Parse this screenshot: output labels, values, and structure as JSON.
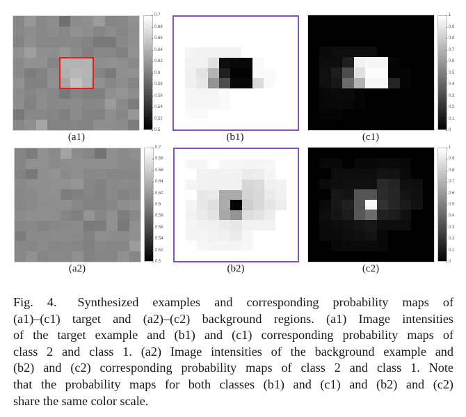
{
  "figure": {
    "number_label": "Fig. 4.",
    "caption_lines": [
      "Synthesized examples and corresponding probability maps of",
      "(a1)–(c1) target and (a2)–(c2) background regions. (a1) Image intensities",
      "of the target example and (b1) and (c1) corresponding probability maps of",
      "class 2 and class 1. (a2) Image intensities of the background example and",
      "(b2) and (c2) corresponding probability maps of class 2 and class 1. Note",
      "that the probability maps for both classes (b1) and (c1) and (b2) and (c2)",
      "share the same color scale."
    ],
    "panel_labels": {
      "a1": "(a1)",
      "b1": "(b1)",
      "c1": "(c1)",
      "a2": "(a2)",
      "b2": "(b2)",
      "c2": "(c2)"
    },
    "colors": {
      "target_box": "#e0201c",
      "prob_frame": "#8a4fbf"
    }
  },
  "chart_data": [
    {
      "id": "a1",
      "type": "heatmap",
      "title": "(a1)",
      "description": "Image intensities of the target example (11x11), red box marks target region rows 4-6, cols 4-6",
      "colormap": "gray",
      "clim": [
        0.5,
        0.7
      ],
      "colorbar_ticks": [
        "0.7",
        "0.68",
        "0.66",
        "0.64",
        "0.62",
        "0.6",
        "0.58",
        "0.56",
        "0.54",
        "0.52",
        "0.5"
      ],
      "highlight_box": {
        "row_start": 4,
        "row_end": 6,
        "col_start": 4,
        "col_end": 6
      },
      "values": [
        [
          0.605,
          0.618,
          0.606,
          0.611,
          0.588,
          0.61,
          0.612,
          0.622,
          0.604,
          0.606,
          0.613
        ],
        [
          0.607,
          0.611,
          0.607,
          0.61,
          0.606,
          0.614,
          0.611,
          0.604,
          0.61,
          0.605,
          0.611
        ],
        [
          0.603,
          0.612,
          0.607,
          0.606,
          0.606,
          0.606,
          0.603,
          0.594,
          0.594,
          0.607,
          0.612
        ],
        [
          0.614,
          0.624,
          0.612,
          0.611,
          0.618,
          0.609,
          0.601,
          0.606,
          0.606,
          0.602,
          0.614
        ],
        [
          0.608,
          0.614,
          0.614,
          0.604,
          0.64,
          0.64,
          0.64,
          0.611,
          0.614,
          0.612,
          0.608
        ],
        [
          0.608,
          0.598,
          0.603,
          0.612,
          0.638,
          0.644,
          0.642,
          0.604,
          0.596,
          0.612,
          0.614
        ],
        [
          0.614,
          0.601,
          0.602,
          0.613,
          0.632,
          0.652,
          0.64,
          0.614,
          0.606,
          0.611,
          0.604
        ],
        [
          0.61,
          0.604,
          0.61,
          0.606,
          0.594,
          0.604,
          0.6,
          0.6,
          0.612,
          0.616,
          0.611
        ],
        [
          0.611,
          0.602,
          0.611,
          0.607,
          0.608,
          0.61,
          0.605,
          0.607,
          0.622,
          0.608,
          0.598
        ],
        [
          0.594,
          0.606,
          0.607,
          0.604,
          0.6,
          0.61,
          0.603,
          0.602,
          0.612,
          0.605,
          0.618
        ],
        [
          0.606,
          0.612,
          0.63,
          0.603,
          0.603,
          0.604,
          0.603,
          0.611,
          0.611,
          0.609,
          0.598
        ]
      ]
    },
    {
      "id": "b1",
      "type": "heatmap",
      "title": "(b1)",
      "description": "Probability map of class 2 for target example",
      "colormap": "gray",
      "clim": [
        0,
        1
      ],
      "values": [
        [
          1,
          1,
          1,
          1,
          1,
          1,
          1,
          1,
          1,
          1,
          1
        ],
        [
          1,
          1,
          1,
          1,
          1,
          1,
          1,
          1,
          1,
          1,
          1
        ],
        [
          1,
          1,
          1,
          1,
          1,
          1,
          1,
          1,
          1,
          1,
          1
        ],
        [
          1,
          0.96,
          0.95,
          0.95,
          0.95,
          0.95,
          1,
          1,
          1,
          1,
          1
        ],
        [
          1,
          0.95,
          0.95,
          0.88,
          0.05,
          0.03,
          0.03,
          0.98,
          1,
          1,
          1
        ],
        [
          1,
          0.94,
          0.89,
          0.7,
          0.12,
          0.01,
          0.01,
          0.98,
          0.98,
          1,
          1
        ],
        [
          1,
          0.94,
          0.91,
          0.58,
          0.3,
          0.03,
          0.03,
          0.86,
          0.98,
          1,
          1
        ],
        [
          1,
          0.97,
          0.96,
          0.96,
          0.98,
          1,
          1,
          1,
          1,
          1,
          1
        ],
        [
          1,
          0.97,
          0.97,
          0.97,
          0.98,
          1,
          1,
          1,
          1,
          1,
          1
        ],
        [
          1,
          0.98,
          0.98,
          1,
          1,
          1,
          1,
          1,
          1,
          1,
          1
        ],
        [
          1,
          1,
          1,
          1,
          1,
          1,
          1,
          1,
          1,
          1,
          1
        ]
      ]
    },
    {
      "id": "c1",
      "type": "heatmap",
      "title": "(c1)",
      "description": "Probability map of class 1 for target example",
      "colormap": "gray",
      "clim": [
        0,
        1
      ],
      "colorbar_ticks": [
        "1",
        "0.9",
        "0.8",
        "0.7",
        "0.6",
        "0.5",
        "0.4",
        "0.3",
        "0.2",
        "0.1",
        "0"
      ],
      "values": [
        [
          0,
          0,
          0,
          0,
          0,
          0,
          0,
          0,
          0,
          0,
          0
        ],
        [
          0,
          0,
          0,
          0,
          0,
          0,
          0,
          0,
          0,
          0,
          0
        ],
        [
          0,
          0,
          0,
          0,
          0,
          0,
          0,
          0,
          0,
          0,
          0
        ],
        [
          0,
          0.04,
          0.05,
          0.05,
          0.05,
          0.05,
          0,
          0,
          0,
          0,
          0
        ],
        [
          0,
          0.05,
          0.05,
          0.12,
          0.95,
          0.97,
          0.97,
          0.02,
          0,
          0,
          0
        ],
        [
          0,
          0.06,
          0.11,
          0.3,
          0.88,
          0.99,
          0.99,
          0.02,
          0.02,
          0,
          0
        ],
        [
          0,
          0.06,
          0.09,
          0.42,
          0.7,
          0.97,
          0.97,
          0.14,
          0.02,
          0,
          0
        ],
        [
          0,
          0.03,
          0.04,
          0.04,
          0.02,
          0,
          0,
          0,
          0,
          0,
          0
        ],
        [
          0,
          0.03,
          0.03,
          0.03,
          0.02,
          0,
          0,
          0,
          0,
          0,
          0
        ],
        [
          0,
          0.02,
          0.02,
          0,
          0,
          0,
          0,
          0,
          0,
          0,
          0
        ],
        [
          0,
          0,
          0,
          0,
          0,
          0,
          0,
          0,
          0,
          0,
          0
        ]
      ]
    },
    {
      "id": "a2",
      "type": "heatmap",
      "title": "(a2)",
      "description": "Image intensities of the background example (11x11)",
      "colormap": "gray",
      "clim": [
        0.5,
        0.7
      ],
      "colorbar_ticks": [
        "0.7",
        "0.68",
        "0.66",
        "0.64",
        "0.62",
        "0.6",
        "0.58",
        "0.56",
        "0.54",
        "0.52",
        "0.5"
      ],
      "values": [
        [
          0.604,
          0.597,
          0.614,
          0.608,
          0.628,
          0.61,
          0.604,
          0.59,
          0.612,
          0.608,
          0.612
        ],
        [
          0.605,
          0.613,
          0.613,
          0.609,
          0.611,
          0.612,
          0.612,
          0.612,
          0.612,
          0.608,
          0.608
        ],
        [
          0.603,
          0.594,
          0.612,
          0.615,
          0.608,
          0.612,
          0.606,
          0.608,
          0.605,
          0.605,
          0.604
        ],
        [
          0.608,
          0.611,
          0.612,
          0.613,
          0.614,
          0.617,
          0.604,
          0.602,
          0.608,
          0.609,
          0.608
        ],
        [
          0.607,
          0.608,
          0.612,
          0.613,
          0.598,
          0.6,
          0.604,
          0.601,
          0.608,
          0.603,
          0.605
        ],
        [
          0.606,
          0.609,
          0.611,
          0.611,
          0.612,
          0.607,
          0.602,
          0.602,
          0.605,
          0.611,
          0.614
        ],
        [
          0.609,
          0.612,
          0.612,
          0.612,
          0.604,
          0.6,
          0.616,
          0.605,
          0.613,
          0.598,
          0.607
        ],
        [
          0.605,
          0.607,
          0.603,
          0.606,
          0.608,
          0.609,
          0.596,
          0.597,
          0.613,
          0.595,
          0.613
        ],
        [
          0.597,
          0.608,
          0.608,
          0.609,
          0.609,
          0.608,
          0.602,
          0.612,
          0.61,
          0.61,
          0.612
        ],
        [
          0.606,
          0.605,
          0.609,
          0.605,
          0.607,
          0.604,
          0.6,
          0.607,
          0.604,
          0.604,
          0.622
        ],
        [
          0.606,
          0.613,
          0.604,
          0.608,
          0.606,
          0.614,
          0.602,
          0.605,
          0.604,
          0.613,
          0.605
        ]
      ]
    },
    {
      "id": "b2",
      "type": "heatmap",
      "title": "(b2)",
      "description": "Probability map of class 2 for background example",
      "colormap": "gray",
      "clim": [
        0,
        1
      ],
      "values": [
        [
          1,
          1,
          1,
          1,
          1,
          1,
          1,
          1,
          1,
          1,
          1
        ],
        [
          1,
          0.97,
          0.97,
          1,
          0.97,
          0.97,
          0.96,
          0.96,
          0.97,
          1,
          1
        ],
        [
          1,
          1,
          0.95,
          0.95,
          0.95,
          0.95,
          0.92,
          0.93,
          0.96,
          1,
          1
        ],
        [
          1,
          0.96,
          0.95,
          0.94,
          0.94,
          0.94,
          0.84,
          0.86,
          0.94,
          0.95,
          1
        ],
        [
          1,
          1,
          0.91,
          0.92,
          0.67,
          0.67,
          0.83,
          0.85,
          0.92,
          0.94,
          1
        ],
        [
          1,
          0.96,
          0.91,
          0.87,
          0.67,
          0.02,
          0.8,
          0.85,
          0.9,
          0.93,
          1
        ],
        [
          1,
          0.95,
          0.92,
          0.89,
          0.66,
          0.58,
          0.87,
          0.89,
          0.93,
          1,
          1
        ],
        [
          1,
          0.96,
          0.95,
          0.94,
          0.92,
          0.91,
          0.95,
          0.95,
          0.95,
          1,
          1
        ],
        [
          1,
          0.96,
          0.96,
          0.95,
          0.94,
          0.92,
          0.97,
          1,
          1,
          1,
          1
        ],
        [
          1,
          1,
          0.97,
          0.96,
          0.96,
          0.96,
          0.97,
          1,
          1,
          1,
          1
        ],
        [
          1,
          1,
          1,
          1,
          1,
          1,
          1,
          1,
          1,
          1,
          1
        ]
      ]
    },
    {
      "id": "c2",
      "type": "heatmap",
      "title": "(c2)",
      "description": "Probability map of class 1 for background example",
      "colormap": "gray",
      "clim": [
        0,
        1
      ],
      "colorbar_ticks": [
        "1",
        "0.9",
        "0.8",
        "0.7",
        "0.6",
        "0.5",
        "0.4",
        "0.3",
        "0.2",
        "0.1",
        "0"
      ],
      "values": [
        [
          0,
          0,
          0,
          0,
          0,
          0,
          0,
          0,
          0,
          0,
          0
        ],
        [
          0,
          0.03,
          0.03,
          0,
          0.03,
          0.03,
          0.04,
          0.04,
          0.03,
          0,
          0
        ],
        [
          0,
          0,
          0.05,
          0.05,
          0.05,
          0.05,
          0.08,
          0.07,
          0.04,
          0,
          0
        ],
        [
          0,
          0.04,
          0.05,
          0.06,
          0.06,
          0.06,
          0.16,
          0.14,
          0.06,
          0.05,
          0
        ],
        [
          0,
          0,
          0.09,
          0.08,
          0.33,
          0.33,
          0.17,
          0.15,
          0.08,
          0.06,
          0
        ],
        [
          0,
          0.04,
          0.09,
          0.13,
          0.33,
          0.98,
          0.2,
          0.15,
          0.1,
          0.07,
          0
        ],
        [
          0,
          0.05,
          0.08,
          0.11,
          0.34,
          0.42,
          0.13,
          0.11,
          0.07,
          0,
          0
        ],
        [
          0,
          0.04,
          0.05,
          0.06,
          0.08,
          0.09,
          0.05,
          0.05,
          0.05,
          0,
          0
        ],
        [
          0,
          0.04,
          0.04,
          0.05,
          0.06,
          0.08,
          0.03,
          0,
          0,
          0,
          0
        ],
        [
          0,
          0,
          0.03,
          0.04,
          0.04,
          0.04,
          0.03,
          0,
          0,
          0,
          0
        ],
        [
          0,
          0,
          0,
          0,
          0,
          0,
          0,
          0,
          0,
          0,
          0
        ]
      ]
    }
  ]
}
